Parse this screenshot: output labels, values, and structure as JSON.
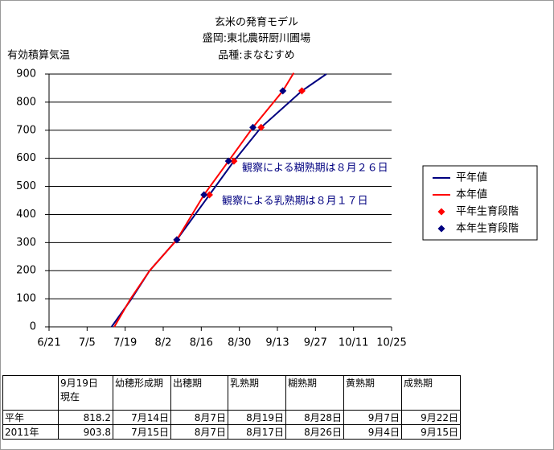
{
  "chart_data": {
    "type": "line",
    "title": "玄米の発育モデル",
    "subtitle": "盛岡:東北農研厨川圃場",
    "subtitle2": "品種:まなむすめ",
    "y_label": "有効積算気温",
    "xlim": [
      "6/21",
      "10/25"
    ],
    "xticks": [
      "6/21",
      "7/5",
      "7/19",
      "8/2",
      "8/16",
      "8/30",
      "9/13",
      "9/27",
      "10/11",
      "10/25"
    ],
    "ylim": [
      0,
      900
    ],
    "yticks": [
      0,
      100,
      200,
      300,
      400,
      500,
      600,
      700,
      800,
      900
    ],
    "grid": true,
    "series": [
      {
        "name": "平年値",
        "style": "line",
        "color": "#000080",
        "x": [
          "7/14",
          "7/21",
          "7/28",
          "8/7",
          "8/19",
          "8/28",
          "9/7",
          "9/22",
          "10/1"
        ],
        "values": [
          0,
          95,
          200,
          310,
          470,
          590,
          710,
          840,
          900
        ]
      },
      {
        "name": "本年値",
        "style": "line",
        "color": "#ff0000",
        "x": [
          "7/15",
          "7/21",
          "7/28",
          "8/7",
          "8/17",
          "8/26",
          "9/4",
          "9/15",
          "9/19"
        ],
        "values": [
          0,
          100,
          200,
          310,
          470,
          590,
          710,
          840,
          904
        ]
      },
      {
        "name": "平年生育段階",
        "style": "marker",
        "color": "#ff0000",
        "x": [
          "8/7",
          "8/19",
          "8/28",
          "9/7",
          "9/22"
        ],
        "values": [
          310,
          470,
          590,
          710,
          840
        ]
      },
      {
        "name": "本年生育段階",
        "style": "marker",
        "color": "#000080",
        "x": [
          "8/7",
          "8/17",
          "8/26",
          "9/4",
          "9/15"
        ],
        "values": [
          310,
          470,
          590,
          710,
          840
        ]
      }
    ],
    "annotations": [
      "観察による糊熟期は８月２６日",
      "観察による乳熟期は８月１７日"
    ],
    "annotation_color": "#000080",
    "legend": "right"
  },
  "table": {
    "header": [
      "9月19日\n現在",
      "幼穂形成期",
      "出穂期",
      "乳熟期",
      "糊熟期",
      "黄熟期",
      "成熟期"
    ],
    "rows": [
      [
        "平年",
        "818.2",
        "7月14日",
        "8月7日",
        "8月19日",
        "8月28日",
        "9月7日",
        "9月22日"
      ],
      [
        "2011年",
        "903.8",
        "7月15日",
        "8月7日",
        "8月17日",
        "8月26日",
        "9月4日",
        "9月15日"
      ]
    ]
  }
}
